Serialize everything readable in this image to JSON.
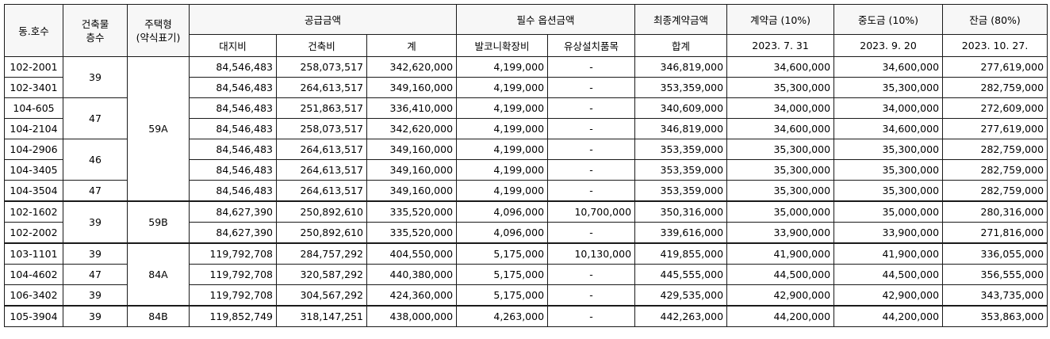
{
  "headers": {
    "unit": "동.호수",
    "floors_1": "건축물",
    "floors_2": "층수",
    "type_1": "주택형",
    "type_2": "(약식표기)",
    "supply": "공급금액",
    "land": "대지비",
    "building": "건축비",
    "total": "계",
    "option": "필수  옵션금액",
    "balcony": "발코니확장비",
    "paid_items": "유상설치품목",
    "final": "최종계약금액",
    "final_sum": "합계",
    "deposit": "계약금 (10%)",
    "deposit_date": "2023. 7. 31",
    "middle": "중도금 (10%)",
    "middle_date": "2023. 9. 20",
    "balance": "잔금 (80%)",
    "balance_date": "2023. 10. 27."
  },
  "rows": [
    {
      "unit": "102-2001",
      "land": "84,546,483",
      "building": "258,073,517",
      "total": "342,620,000",
      "balcony": "4,199,000",
      "paid": "-",
      "final": "346,819,000",
      "deposit": "34,600,000",
      "middle": "34,600,000",
      "balance": "277,619,000"
    },
    {
      "unit": "102-3401",
      "land": "84,546,483",
      "building": "264,613,517",
      "total": "349,160,000",
      "balcony": "4,199,000",
      "paid": "-",
      "final": "353,359,000",
      "deposit": "35,300,000",
      "middle": "35,300,000",
      "balance": "282,759,000"
    },
    {
      "unit": "104-605",
      "land": "84,546,483",
      "building": "251,863,517",
      "total": "336,410,000",
      "balcony": "4,199,000",
      "paid": "-",
      "final": "340,609,000",
      "deposit": "34,000,000",
      "middle": "34,000,000",
      "balance": "272,609,000"
    },
    {
      "unit": "104-2104",
      "land": "84,546,483",
      "building": "258,073,517",
      "total": "342,620,000",
      "balcony": "4,199,000",
      "paid": "-",
      "final": "346,819,000",
      "deposit": "34,600,000",
      "middle": "34,600,000",
      "balance": "277,619,000"
    },
    {
      "unit": "104-2906",
      "land": "84,546,483",
      "building": "264,613,517",
      "total": "349,160,000",
      "balcony": "4,199,000",
      "paid": "-",
      "final": "353,359,000",
      "deposit": "35,300,000",
      "middle": "35,300,000",
      "balance": "282,759,000"
    },
    {
      "unit": "104-3405",
      "land": "84,546,483",
      "building": "264,613,517",
      "total": "349,160,000",
      "balcony": "4,199,000",
      "paid": "-",
      "final": "353,359,000",
      "deposit": "35,300,000",
      "middle": "35,300,000",
      "balance": "282,759,000"
    },
    {
      "unit": "104-3504",
      "land": "84,546,483",
      "building": "264,613,517",
      "total": "349,160,000",
      "balcony": "4,199,000",
      "paid": "-",
      "final": "353,359,000",
      "deposit": "35,300,000",
      "middle": "35,300,000",
      "balance": "282,759,000"
    },
    {
      "unit": "102-1602",
      "land": "84,627,390",
      "building": "250,892,610",
      "total": "335,520,000",
      "balcony": "4,096,000",
      "paid": "10,700,000",
      "final": "350,316,000",
      "deposit": "35,000,000",
      "middle": "35,000,000",
      "balance": "280,316,000"
    },
    {
      "unit": "102-2002",
      "land": "84,627,390",
      "building": "250,892,610",
      "total": "335,520,000",
      "balcony": "4,096,000",
      "paid": "-",
      "final": "339,616,000",
      "deposit": "33,900,000",
      "middle": "33,900,000",
      "balance": "271,816,000"
    },
    {
      "unit": "103-1101",
      "land": "119,792,708",
      "building": "284,757,292",
      "total": "404,550,000",
      "balcony": "5,175,000",
      "paid": "10,130,000",
      "final": "419,855,000",
      "deposit": "41,900,000",
      "middle": "41,900,000",
      "balance": "336,055,000"
    },
    {
      "unit": "104-4602",
      "land": "119,792,708",
      "building": "320,587,292",
      "total": "440,380,000",
      "balcony": "5,175,000",
      "paid": "-",
      "final": "445,555,000",
      "deposit": "44,500,000",
      "middle": "44,500,000",
      "balance": "356,555,000"
    },
    {
      "unit": "106-3402",
      "land": "119,792,708",
      "building": "304,567,292",
      "total": "424,360,000",
      "balcony": "5,175,000",
      "paid": "-",
      "final": "429,535,000",
      "deposit": "42,900,000",
      "middle": "42,900,000",
      "balance": "343,735,000"
    },
    {
      "unit": "105-3904",
      "land": "119,852,749",
      "building": "318,147,251",
      "total": "438,000,000",
      "balcony": "4,263,000",
      "paid": "-",
      "final": "442,263,000",
      "deposit": "44,200,000",
      "middle": "44,200,000",
      "balance": "353,863,000"
    }
  ],
  "floor_groups": [
    "39",
    "47",
    "46",
    "47",
    "39",
    "39",
    "47",
    "39",
    "39"
  ],
  "type_groups": [
    "59A",
    "59B",
    "84A",
    "84B"
  ]
}
